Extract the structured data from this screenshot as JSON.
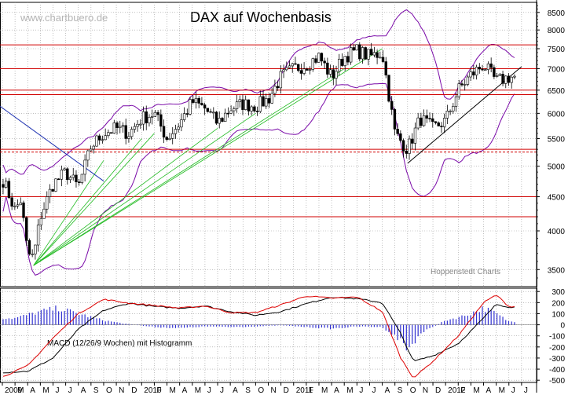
{
  "header": {
    "title": "DAX auf Wochenbasis",
    "watermark": "www.chartbuero.de"
  },
  "footer": {
    "source": "Hoppenstedt Charts"
  },
  "colors": {
    "price": "#000000",
    "bollinger": "#7a0aa8",
    "resistance": "#d00000",
    "trend_green": "#22bb22",
    "trend_blue": "#1a2fb0",
    "macd": "#000000",
    "signal": "#dd0000",
    "histogram": "#3030d0",
    "grid": "#9a9a9a"
  },
  "chart_data": [
    {
      "type": "candlestick",
      "title": "DAX auf Wochenbasis",
      "y_scale": "log",
      "ylim": [
        3300,
        8800
      ],
      "y_ticks": [
        3500,
        4000,
        4500,
        5000,
        5500,
        6000,
        6500,
        7000,
        7500,
        8000,
        8500
      ],
      "x_ticks": [
        "2009",
        "M",
        "A",
        "M",
        "J",
        "J",
        "A",
        "S",
        "O",
        "N",
        "D",
        "2010",
        "F",
        "M",
        "A",
        "M",
        "J",
        "J",
        "A",
        "S",
        "O",
        "N",
        "D",
        "2011",
        "F",
        "M",
        "A",
        "M",
        "J",
        "J",
        "A",
        "S",
        "O",
        "N",
        "D",
        "2012",
        "F",
        "M",
        "A",
        "M",
        "J",
        "J"
      ],
      "x_range": [
        "2009-01",
        "2012-07"
      ],
      "grid": true,
      "close_path": [
        [
          "2009-01",
          4800
        ],
        [
          "2009-02",
          4300
        ],
        [
          "2009-02-15",
          4450
        ],
        [
          "2009-03",
          3700
        ],
        [
          "2009-03-15",
          3650
        ],
        [
          "2009-04",
          4200
        ],
        [
          "2009-05",
          4700
        ],
        [
          "2009-06",
          4900
        ],
        [
          "2009-07",
          4650
        ],
        [
          "2009-08",
          5350
        ],
        [
          "2009-09",
          5600
        ],
        [
          "2009-10",
          5700
        ],
        [
          "2009-11",
          5600
        ],
        [
          "2009-12",
          5900
        ],
        [
          "2010-01",
          6000
        ],
        [
          "2010-02",
          5500
        ],
        [
          "2010-03",
          5800
        ],
        [
          "2010-04",
          6250
        ],
        [
          "2010-05",
          6100
        ],
        [
          "2010-06",
          5800
        ],
        [
          "2010-07",
          6100
        ],
        [
          "2010-08",
          6200
        ],
        [
          "2010-09",
          6150
        ],
        [
          "2010-10",
          6300
        ],
        [
          "2010-11",
          6800
        ],
        [
          "2010-12",
          7000
        ],
        [
          "2011-01",
          7100
        ],
        [
          "2011-02",
          7300
        ],
        [
          "2011-03",
          6800
        ],
        [
          "2011-04",
          7300
        ],
        [
          "2011-05",
          7450
        ],
        [
          "2011-06",
          7300
        ],
        [
          "2011-07",
          7400
        ],
        [
          "2011-08",
          5600
        ],
        [
          "2011-09",
          5300
        ],
        [
          "2011-10",
          5900
        ],
        [
          "2011-11",
          5700
        ],
        [
          "2011-12",
          5850
        ],
        [
          "2012-01",
          6500
        ],
        [
          "2012-02",
          6850
        ],
        [
          "2012-03",
          7100
        ],
        [
          "2012-04",
          6700
        ],
        [
          "2012-05",
          6800
        ]
      ],
      "horizontal_lines": [
        7600,
        7000,
        6500,
        6400,
        5300,
        5250,
        4500,
        4200
      ],
      "annotations": [
        "www.chartbuero.de",
        "Hoppenstedt Charts"
      ]
    },
    {
      "type": "line",
      "title": "MACD (12/26/9 Wochen) mit Histogramm",
      "ylim": [
        -520,
        330
      ],
      "y_ticks": [
        300,
        200,
        100,
        0,
        -100,
        -200,
        -300,
        -400,
        -500
      ],
      "series": [
        {
          "name": "MACD",
          "points": [
            [
              "2009-01",
              -430
            ],
            [
              "2009-03",
              -420
            ],
            [
              "2009-05",
              -300
            ],
            [
              "2009-07",
              -40
            ],
            [
              "2009-09",
              130
            ],
            [
              "2009-11",
              195
            ],
            [
              "2010-01",
              165
            ],
            [
              "2010-03",
              150
            ],
            [
              "2010-05",
              170
            ],
            [
              "2010-07",
              120
            ],
            [
              "2010-09",
              85
            ],
            [
              "2010-11",
              120
            ],
            [
              "2011-01",
              190
            ],
            [
              "2011-03",
              250
            ],
            [
              "2011-05",
              235
            ],
            [
              "2011-07",
              200
            ],
            [
              "2011-08-15",
              -80
            ],
            [
              "2011-09-15",
              -330
            ],
            [
              "2011-11",
              -280
            ],
            [
              "2012-01",
              -170
            ],
            [
              "2012-03",
              60
            ],
            [
              "2012-04",
              185
            ],
            [
              "2012-05",
              160
            ]
          ]
        },
        {
          "name": "Signal",
          "points": [
            [
              "2009-01",
              -470
            ],
            [
              "2009-03",
              -370
            ],
            [
              "2009-05",
              -120
            ],
            [
              "2009-07",
              100
            ],
            [
              "2009-09",
              230
            ],
            [
              "2009-11",
              195
            ],
            [
              "2010-01",
              175
            ],
            [
              "2010-03",
              150
            ],
            [
              "2010-05",
              170
            ],
            [
              "2010-07",
              110
            ],
            [
              "2010-09",
              110
            ],
            [
              "2010-11",
              180
            ],
            [
              "2011-01",
              260
            ],
            [
              "2011-03",
              240
            ],
            [
              "2011-05",
              250
            ],
            [
              "2011-07",
              120
            ],
            [
              "2011-08-15",
              -300
            ],
            [
              "2011-09-15",
              -480
            ],
            [
              "2011-11",
              -330
            ],
            [
              "2012-01",
              -100
            ],
            [
              "2012-03",
              200
            ],
            [
              "2012-04",
              270
            ],
            [
              "2012-05",
              165
            ]
          ]
        },
        {
          "name": "Histogramm",
          "type": "bar",
          "points": [
            [
              "2009-02",
              60
            ],
            [
              "2009-04",
              120
            ],
            [
              "2009-05-15",
              150
            ],
            [
              "2009-07",
              100
            ],
            [
              "2009-09",
              40
            ],
            [
              "2009-11",
              5
            ],
            [
              "2010-01",
              -20
            ],
            [
              "2010-03",
              -30
            ],
            [
              "2010-05",
              -15
            ],
            [
              "2010-07",
              -20
            ],
            [
              "2010-09",
              -15
            ],
            [
              "2010-11",
              -5
            ],
            [
              "2011-01",
              -20
            ],
            [
              "2011-03",
              -35
            ],
            [
              "2011-05",
              -15
            ],
            [
              "2011-07",
              -20
            ],
            [
              "2011-08-15",
              -140
            ],
            [
              "2011-09",
              -230
            ],
            [
              "2011-10",
              -80
            ],
            [
              "2011-12",
              40
            ],
            [
              "2012-01-15",
              80
            ],
            [
              "2012-03",
              150
            ],
            [
              "2012-04",
              100
            ],
            [
              "2012-05",
              30
            ]
          ]
        }
      ]
    }
  ]
}
